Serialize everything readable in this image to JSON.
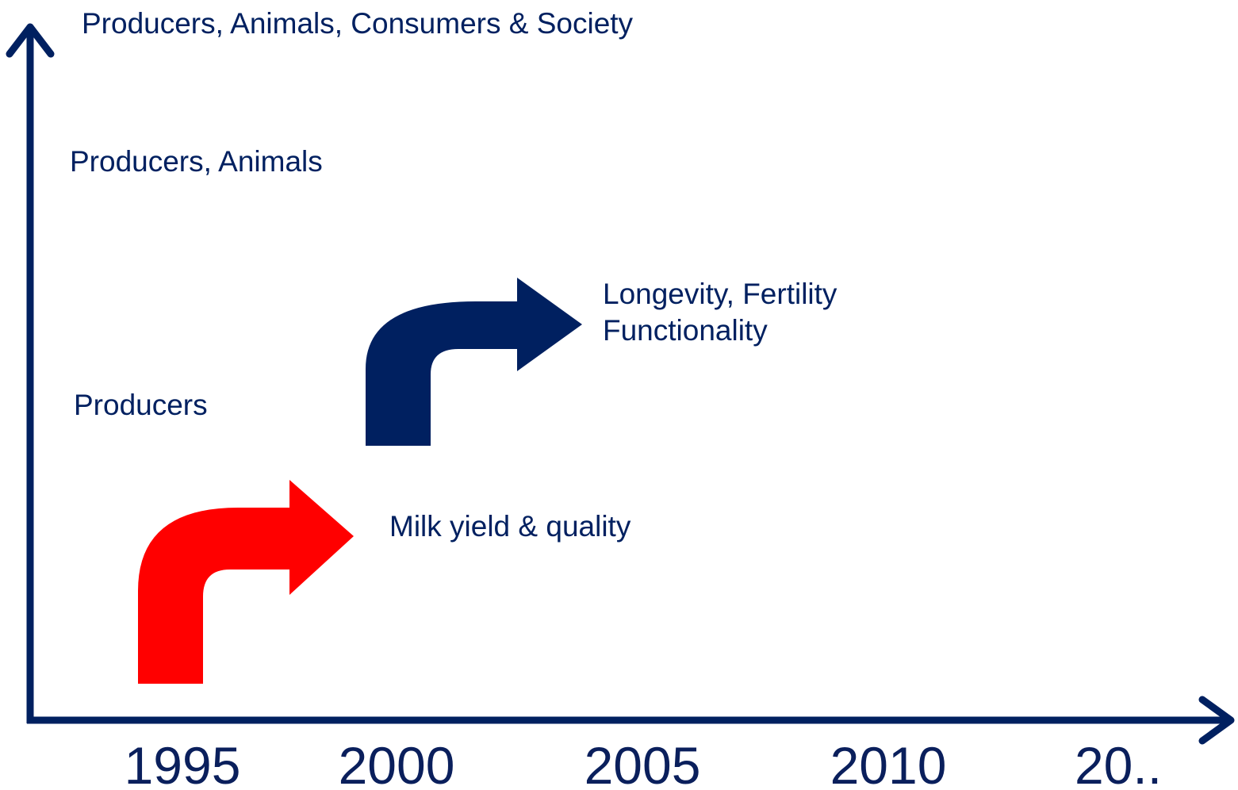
{
  "y_axis": {
    "levels": [
      "Producers, Animals, Consumers & Society",
      "Producers, Animals",
      "Producers"
    ]
  },
  "x_axis": {
    "labels": [
      "1995",
      "2000",
      "2005",
      "2010",
      "20.."
    ]
  },
  "arrows": [
    {
      "label": [
        "Milk yield & quality"
      ]
    },
    {
      "label": [
        "Longevity, Fertility",
        "Functionality"
      ]
    }
  ]
}
